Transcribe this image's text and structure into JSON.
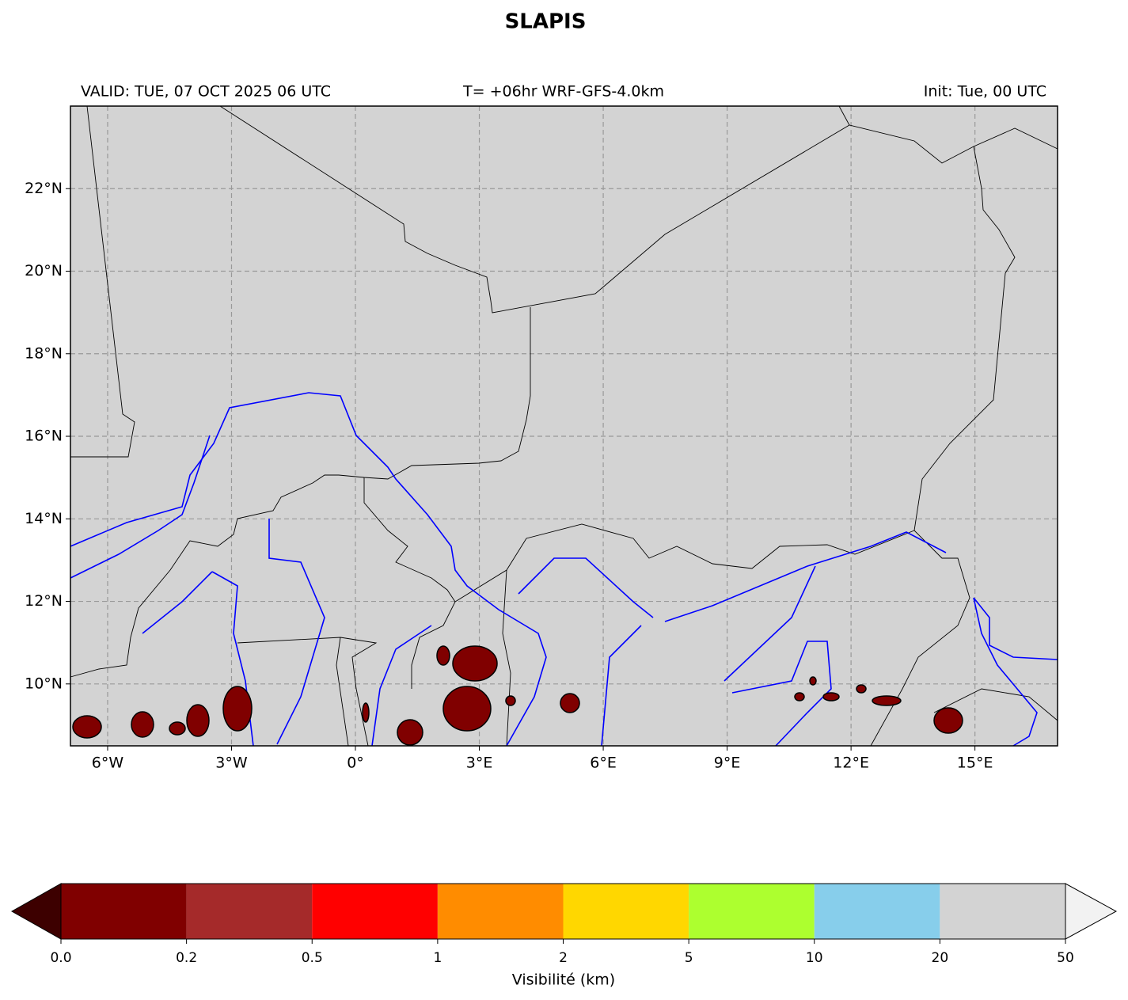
{
  "header": {
    "title": "SLAPIS",
    "valid": "VALID: TUE, 07 OCT 2025 06 UTC",
    "model": "T= +06hr WRF-GFS-4.0km",
    "init": "Init: Tue, 00 UTC"
  },
  "map": {
    "xlim": [
      -6.9,
      17
    ],
    "ylim": [
      8.5,
      24
    ],
    "xticks": [
      {
        "value": -6,
        "label": "6°W"
      },
      {
        "value": -3,
        "label": "3°W"
      },
      {
        "value": 0,
        "label": "0°"
      },
      {
        "value": 3,
        "label": "3°E"
      },
      {
        "value": 6,
        "label": "6°E"
      },
      {
        "value": 9,
        "label": "9°E"
      },
      {
        "value": 12,
        "label": "12°E"
      },
      {
        "value": 15,
        "label": "15°E"
      }
    ],
    "yticks": [
      {
        "value": 10,
        "label": "10°N"
      },
      {
        "value": 12,
        "label": "12°N"
      },
      {
        "value": 14,
        "label": "14°N"
      },
      {
        "value": 16,
        "label": "16°N"
      },
      {
        "value": 18,
        "label": "18°N"
      },
      {
        "value": 20,
        "label": "20°N"
      },
      {
        "value": 22,
        "label": "22°N"
      }
    ],
    "grid": true,
    "background": "#d3d3d3"
  },
  "colorbar": {
    "label": "Visibilité (km)",
    "ticks": [
      {
        "value": 0,
        "label": "0.0"
      },
      0.2,
      0.5,
      1,
      2,
      5,
      10,
      20,
      50
    ],
    "colors": [
      "#800000",
      "#a52a2a",
      "#ff0000",
      "#ff8c00",
      "#ffd700",
      "#adff2f",
      "#87ceeb",
      "#d3d3d3"
    ],
    "extend_colors": [
      "#3d0000",
      "#f2f2f2"
    ]
  }
}
